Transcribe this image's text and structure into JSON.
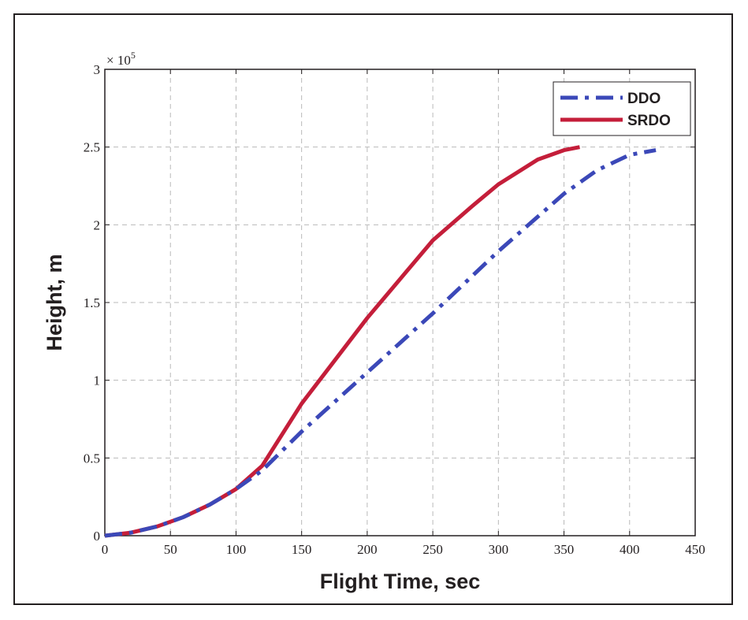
{
  "chart_data": {
    "type": "line",
    "title": "",
    "xlabel": "Flight Time, sec",
    "ylabel": "Height, m",
    "y_multiplier_label": "× 10",
    "y_multiplier_exponent": "5",
    "xlim": [
      0,
      450
    ],
    "ylim": [
      0,
      3
    ],
    "x_ticks": [
      0,
      50,
      100,
      150,
      200,
      250,
      300,
      350,
      400,
      450
    ],
    "y_ticks": [
      0,
      0.5,
      1,
      1.5,
      2,
      2.5,
      3
    ],
    "x_tick_labels": [
      "0",
      "50",
      "100",
      "150",
      "200",
      "250",
      "300",
      "350",
      "400",
      "450"
    ],
    "y_tick_labels": [
      "0",
      "0.5",
      "1",
      "1.5",
      "2",
      "2.5",
      "3"
    ],
    "grid": true,
    "legend_position": "top-right",
    "series": [
      {
        "name": "DDO",
        "color": "#3b48b8",
        "style": "dash-dot",
        "x": [
          0,
          20,
          40,
          60,
          80,
          100,
          120,
          150,
          200,
          250,
          300,
          350,
          375,
          400,
          420
        ],
        "y": [
          0,
          0.02,
          0.06,
          0.12,
          0.2,
          0.3,
          0.42,
          0.67,
          1.05,
          1.43,
          1.83,
          2.2,
          2.35,
          2.45,
          2.48
        ]
      },
      {
        "name": "SRDO",
        "color": "#c41e3a",
        "style": "solid",
        "x": [
          0,
          20,
          40,
          60,
          80,
          100,
          120,
          150,
          200,
          250,
          280,
          300,
          330,
          350,
          362
        ],
        "y": [
          0,
          0.02,
          0.06,
          0.12,
          0.2,
          0.3,
          0.45,
          0.85,
          1.4,
          1.9,
          2.12,
          2.26,
          2.42,
          2.48,
          2.5
        ]
      }
    ]
  }
}
